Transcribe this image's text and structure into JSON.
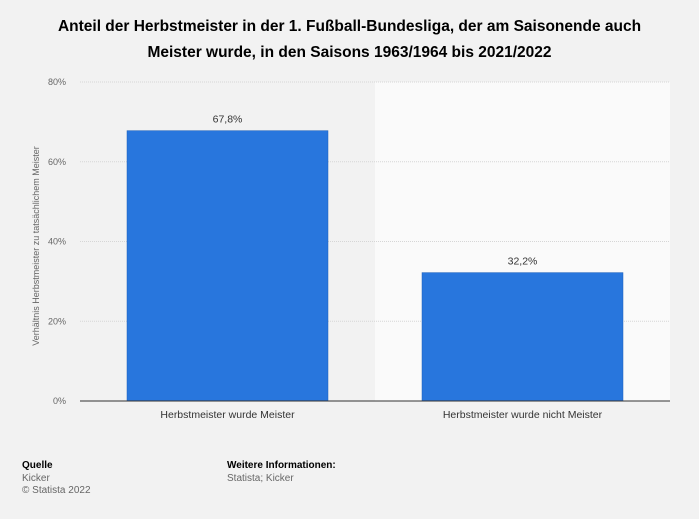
{
  "title_lines": [
    "Anteil der Herbstmeister in der 1. Fußball-Bundesliga, der am Saisonende auch",
    "Meister wurde, in den Saisons 1963/1964 bis 2021/2022"
  ],
  "source": {
    "heading": "Quelle",
    "lines": [
      "Kicker",
      "© Statista 2022"
    ]
  },
  "more_info": {
    "heading": "Weitere Informationen:",
    "lines": [
      "Statista; Kicker"
    ]
  },
  "chart_data": {
    "type": "bar",
    "categories": [
      "Herbstmeister wurde Meister",
      "Herbstmeister wurde nicht Meister"
    ],
    "values": [
      67.8,
      32.2
    ],
    "value_labels": [
      "67,8%",
      "32,2%"
    ],
    "ylabel": "Verhältnis Herbstmeister zu tatsächlichem Meister",
    "ylim": [
      0,
      80
    ],
    "yticks": [
      0,
      20,
      40,
      60,
      80
    ],
    "ytick_labels": [
      "0%",
      "20%",
      "40%",
      "60%",
      "80%"
    ],
    "grid": true,
    "bar_color": "#2876dd"
  }
}
